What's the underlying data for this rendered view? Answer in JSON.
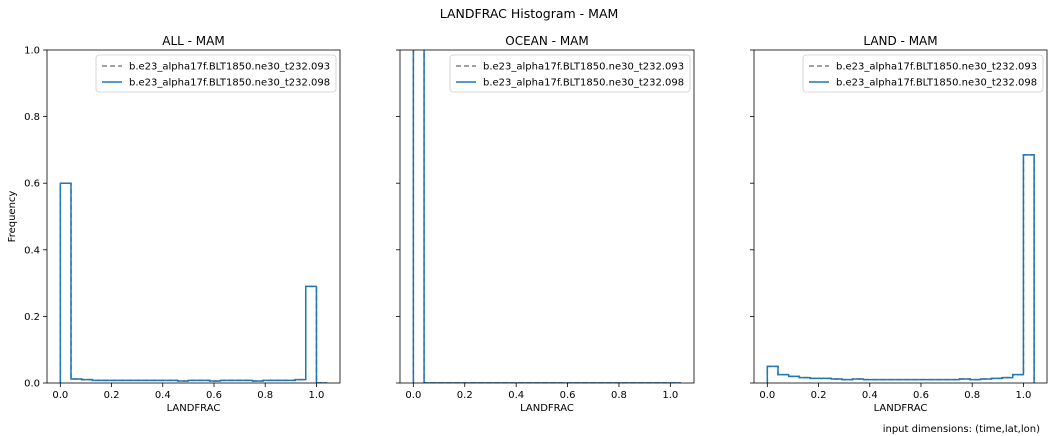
{
  "figure": {
    "suptitle": "LANDFRAC Histogram - MAM",
    "footnote": "input dimensions: (time,lat,lon)"
  },
  "colors": {
    "series_dashed": "#808080",
    "series_solid": "#1f77b4",
    "axes": "#000000"
  },
  "chart_data": [
    {
      "type": "step-histogram",
      "title": "ALL - MAM",
      "xlabel": "LANDFRAC",
      "ylabel": "Frequency",
      "xlim": [
        -0.052,
        1.092
      ],
      "ylim": [
        0,
        1.0
      ],
      "xticks": [
        "0.0",
        "0.2",
        "0.4",
        "0.6",
        "0.8",
        "1.0"
      ],
      "yticks": [
        "0.0",
        "0.2",
        "0.4",
        "0.6",
        "0.8",
        "1.0"
      ],
      "legend_position": "upper right",
      "series": [
        {
          "name": "b.e23_alpha17f.BLT1850.ne30_t232.093",
          "style": "dashed"
        },
        {
          "name": "b.e23_alpha17f.BLT1850.ne30_t232.098",
          "style": "solid"
        }
      ],
      "bin_edges": [
        0,
        0.0417,
        0.0833,
        0.125,
        0.1667,
        0.2083,
        0.25,
        0.2917,
        0.3333,
        0.375,
        0.4167,
        0.4583,
        0.5,
        0.5417,
        0.5833,
        0.625,
        0.6667,
        0.7083,
        0.75,
        0.7917,
        0.8333,
        0.875,
        0.9167,
        0.9583,
        1.0,
        1.0417
      ],
      "values": [
        0.6,
        0.012,
        0.01,
        0.008,
        0.008,
        0.008,
        0.008,
        0.008,
        0.008,
        0.008,
        0.008,
        0.006,
        0.008,
        0.008,
        0.006,
        0.008,
        0.008,
        0.008,
        0.006,
        0.008,
        0.008,
        0.008,
        0.01,
        0.29,
        0.0
      ]
    },
    {
      "type": "step-histogram",
      "title": "OCEAN - MAM",
      "xlabel": "LANDFRAC",
      "ylabel": "",
      "xlim": [
        -0.052,
        1.092
      ],
      "ylim": [
        0,
        1.0
      ],
      "xticks": [
        "0.0",
        "0.2",
        "0.4",
        "0.6",
        "0.8",
        "1.0"
      ],
      "yticks": [],
      "legend_position": "upper right",
      "series": [
        {
          "name": "b.e23_alpha17f.BLT1850.ne30_t232.093",
          "style": "dashed"
        },
        {
          "name": "b.e23_alpha17f.BLT1850.ne30_t232.098",
          "style": "solid"
        }
      ],
      "bin_edges": [
        0,
        0.0417,
        0.0833,
        0.125,
        0.1667,
        0.2083,
        0.25,
        0.2917,
        0.3333,
        0.375,
        0.4167,
        0.4583,
        0.5,
        0.5417,
        0.5833,
        0.625,
        0.6667,
        0.7083,
        0.75,
        0.7917,
        0.8333,
        0.875,
        0.9167,
        0.9583,
        1.0,
        1.0417
      ],
      "values": [
        1.2,
        0,
        0,
        0,
        0,
        0,
        0,
        0,
        0,
        0,
        0,
        0,
        0,
        0,
        0,
        0,
        0,
        0,
        0,
        0,
        0,
        0,
        0,
        0,
        0
      ]
    },
    {
      "type": "step-histogram",
      "title": "LAND - MAM",
      "xlabel": "LANDFRAC",
      "ylabel": "",
      "xlim": [
        -0.052,
        1.092
      ],
      "ylim": [
        0,
        1.0
      ],
      "xticks": [
        "0.0",
        "0.2",
        "0.4",
        "0.6",
        "0.8",
        "1.0"
      ],
      "yticks": [],
      "legend_position": "upper right",
      "series": [
        {
          "name": "b.e23_alpha17f.BLT1850.ne30_t232.093",
          "style": "dashed"
        },
        {
          "name": "b.e23_alpha17f.BLT1850.ne30_t232.098",
          "style": "solid"
        }
      ],
      "bin_edges": [
        0,
        0.0417,
        0.0833,
        0.125,
        0.1667,
        0.2083,
        0.25,
        0.2917,
        0.3333,
        0.375,
        0.4167,
        0.4583,
        0.5,
        0.5417,
        0.5833,
        0.625,
        0.6667,
        0.7083,
        0.75,
        0.7917,
        0.8333,
        0.875,
        0.9167,
        0.9583,
        1.0,
        1.0417
      ],
      "values": [
        0.05,
        0.025,
        0.02,
        0.016,
        0.014,
        0.014,
        0.012,
        0.01,
        0.012,
        0.01,
        0.01,
        0.01,
        0.01,
        0.01,
        0.01,
        0.01,
        0.01,
        0.01,
        0.012,
        0.01,
        0.012,
        0.014,
        0.016,
        0.025,
        0.685
      ]
    }
  ]
}
